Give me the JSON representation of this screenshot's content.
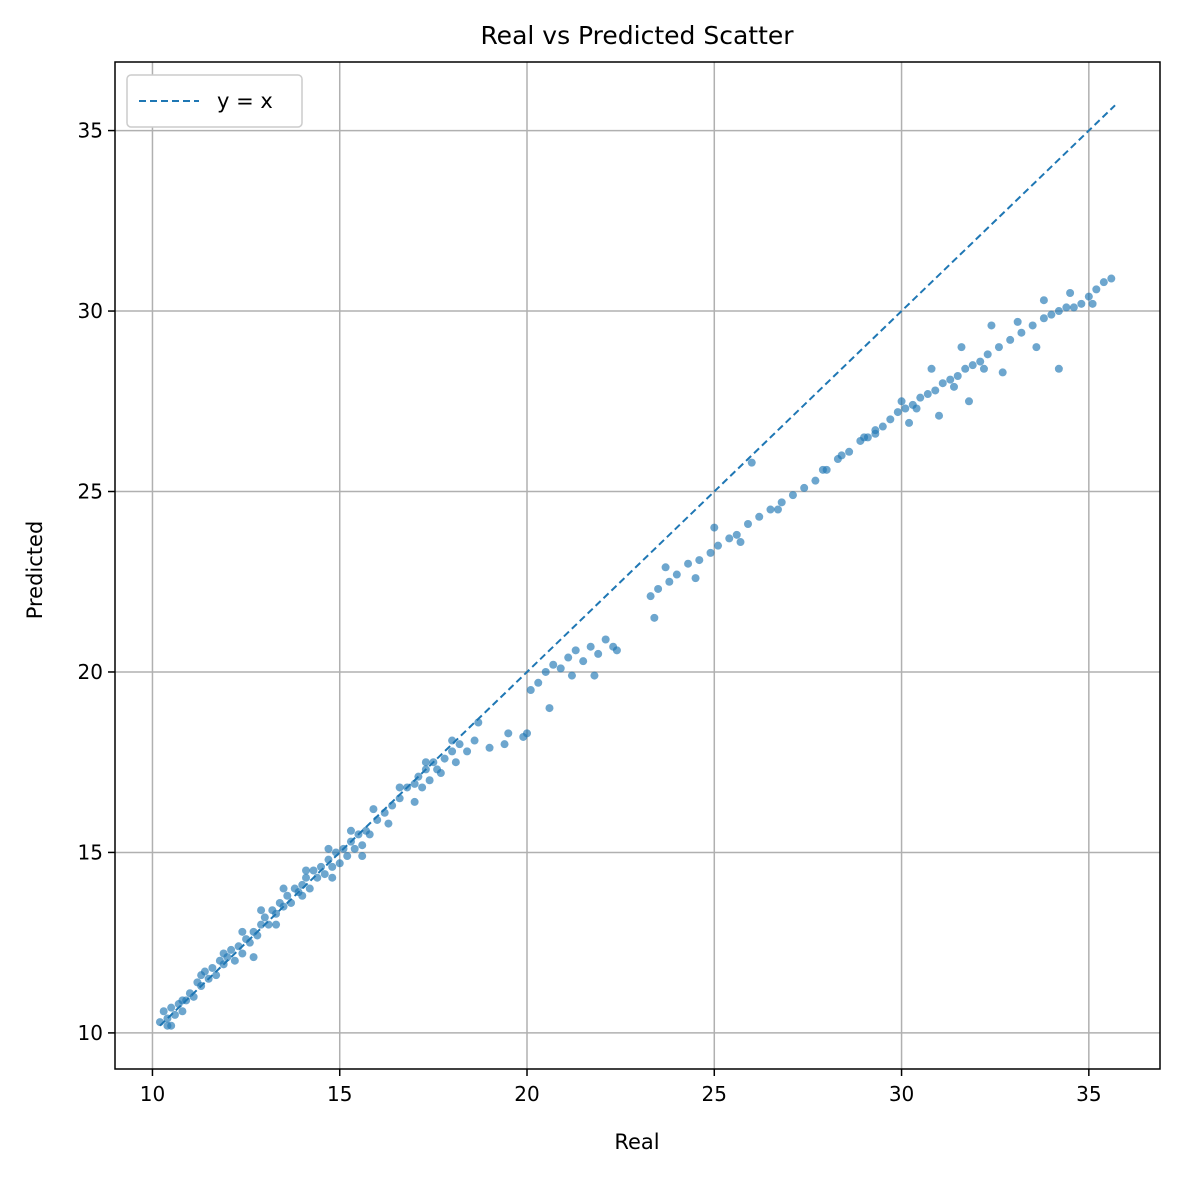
{
  "chart_data": {
    "type": "scatter",
    "title": "Real vs Predicted Scatter",
    "xlabel": "Real",
    "ylabel": "Predicted",
    "xlim": [
      9.0,
      36.9
    ],
    "ylim": [
      9.0,
      36.9
    ],
    "xticks": [
      10,
      15,
      20,
      25,
      30,
      35
    ],
    "yticks": [
      10,
      15,
      20,
      25,
      30,
      35
    ],
    "grid": true,
    "legend_position": "top-left",
    "colors": {
      "points": "#1f77b4",
      "line": "#1f77b4",
      "grid": "#b0b0b0"
    },
    "series": [
      {
        "name": "y = x",
        "kind": "dashed-line",
        "x": [
          10.2,
          35.7
        ],
        "y": [
          10.2,
          35.7
        ]
      }
    ],
    "points": {
      "x": [
        10.2,
        10.3,
        10.4,
        10.5,
        10.5,
        10.6,
        10.7,
        10.8,
        10.9,
        11.0,
        11.1,
        11.2,
        11.3,
        11.4,
        11.5,
        11.6,
        11.7,
        11.8,
        11.9,
        12.0,
        12.1,
        12.2,
        12.3,
        12.4,
        12.5,
        12.6,
        12.7,
        12.8,
        12.9,
        13.0,
        13.1,
        13.2,
        13.3,
        13.4,
        13.5,
        13.6,
        13.7,
        13.8,
        13.9,
        14.0,
        14.1,
        14.2,
        14.3,
        14.4,
        14.5,
        14.6,
        14.7,
        14.8,
        14.9,
        15.0,
        15.1,
        15.2,
        15.3,
        15.4,
        15.5,
        15.6,
        15.7,
        15.8,
        16.0,
        16.2,
        16.4,
        16.6,
        16.8,
        17.0,
        17.1,
        17.2,
        17.3,
        17.4,
        17.5,
        17.6,
        17.8,
        18.0,
        18.1,
        18.2,
        18.4,
        18.6,
        19.0,
        19.4,
        19.9,
        20.1,
        20.3,
        20.5,
        20.7,
        20.9,
        21.1,
        21.3,
        21.5,
        21.7,
        21.9,
        22.1,
        22.3,
        23.3,
        23.5,
        23.8,
        24.0,
        24.3,
        24.6,
        24.9,
        25.1,
        25.4,
        25.6,
        25.9,
        26.2,
        26.5,
        26.8,
        27.1,
        27.4,
        27.7,
        28.0,
        28.3,
        28.6,
        28.9,
        29.1,
        29.3,
        29.5,
        29.7,
        29.9,
        30.1,
        30.3,
        30.5,
        30.7,
        30.9,
        31.1,
        31.3,
        31.5,
        31.7,
        31.9,
        32.1,
        32.3,
        32.6,
        32.9,
        33.2,
        33.5,
        33.8,
        34.0,
        34.2,
        34.4,
        34.6,
        34.8,
        35.0,
        35.2,
        35.4,
        35.6,
        10.4,
        10.8,
        11.3,
        11.9,
        12.4,
        12.9,
        13.5,
        14.1,
        14.7,
        15.3,
        15.9,
        16.6,
        17.3,
        18.0,
        18.7,
        20.0,
        21.2,
        22.4,
        23.4,
        24.5,
        25.7,
        26.7,
        27.9,
        29.0,
        30.0,
        30.8,
        31.6,
        32.4,
        33.1,
        33.8,
        34.5,
        35.1,
        30.2,
        31.0,
        31.8,
        32.7,
        33.6,
        34.2,
        28.4,
        29.3,
        30.4,
        31.4,
        32.2,
        12.7,
        13.3,
        14.0,
        14.8,
        15.6,
        16.3,
        17.0,
        17.7,
        19.5,
        20.6,
        21.8,
        23.7,
        25.0,
        26.0
      ],
      "y": [
        10.3,
        10.6,
        10.4,
        10.2,
        10.7,
        10.5,
        10.8,
        10.6,
        10.9,
        11.1,
        11.0,
        11.4,
        11.3,
        11.7,
        11.5,
        11.8,
        11.6,
        12.0,
        11.9,
        12.1,
        12.3,
        12.0,
        12.4,
        12.2,
        12.6,
        12.5,
        12.8,
        12.7,
        13.0,
        13.2,
        13.0,
        13.4,
        13.3,
        13.6,
        13.5,
        13.8,
        13.6,
        14.0,
        13.9,
        14.1,
        14.3,
        14.0,
        14.5,
        14.3,
        14.6,
        14.4,
        14.8,
        14.6,
        15.0,
        14.7,
        15.1,
        14.9,
        15.3,
        15.1,
        15.5,
        15.2,
        15.6,
        15.5,
        15.9,
        16.1,
        16.3,
        16.5,
        16.8,
        16.9,
        17.1,
        16.8,
        17.3,
        17.0,
        17.5,
        17.3,
        17.6,
        17.8,
        17.5,
        18.0,
        17.8,
        18.1,
        17.9,
        18.0,
        18.2,
        19.5,
        19.7,
        20.0,
        20.2,
        20.1,
        20.4,
        20.6,
        20.3,
        20.7,
        20.5,
        20.9,
        20.7,
        22.1,
        22.3,
        22.5,
        22.7,
        23.0,
        23.1,
        23.3,
        23.5,
        23.7,
        23.8,
        24.1,
        24.3,
        24.5,
        24.7,
        24.9,
        25.1,
        25.3,
        25.6,
        25.9,
        26.1,
        26.4,
        26.5,
        26.7,
        26.8,
        27.0,
        27.2,
        27.3,
        27.4,
        27.6,
        27.7,
        27.8,
        28.0,
        28.1,
        28.2,
        28.4,
        28.5,
        28.6,
        28.8,
        29.0,
        29.2,
        29.4,
        29.6,
        29.8,
        29.9,
        30.0,
        30.1,
        30.1,
        30.2,
        30.4,
        30.6,
        30.8,
        30.9,
        10.2,
        10.9,
        11.6,
        12.2,
        12.8,
        13.4,
        14.0,
        14.5,
        15.1,
        15.6,
        16.2,
        16.8,
        17.5,
        18.1,
        18.6,
        18.3,
        19.9,
        20.6,
        21.5,
        22.6,
        23.6,
        24.5,
        25.6,
        26.5,
        27.5,
        28.4,
        29.0,
        29.6,
        29.7,
        30.3,
        30.5,
        30.2,
        26.9,
        27.1,
        27.5,
        28.3,
        29.0,
        28.4,
        26.0,
        26.6,
        27.3,
        27.9,
        28.4,
        12.1,
        13.0,
        13.8,
        14.3,
        14.9,
        15.8,
        16.4,
        17.2,
        18.3,
        19.0,
        19.9,
        22.9,
        24.0,
        25.8
      ]
    }
  }
}
